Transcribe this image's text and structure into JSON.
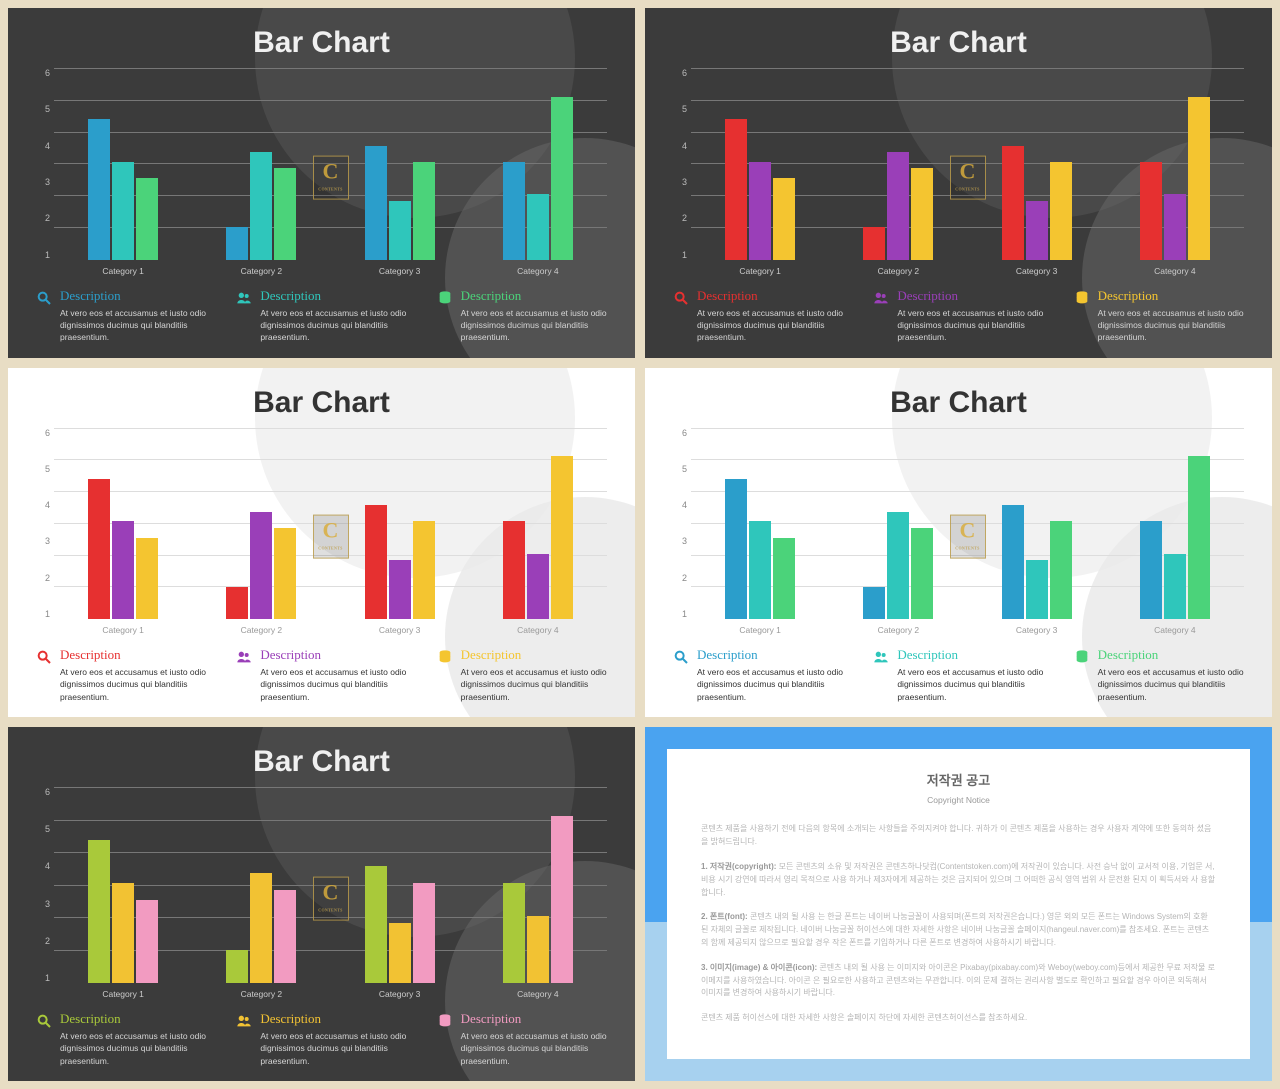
{
  "shared": {
    "title": "Bar Chart",
    "categories": [
      "Category 1",
      "Category 2",
      "Category 3",
      "Category 4"
    ],
    "y_ticks": [
      "1",
      "2",
      "3",
      "4",
      "5",
      "6"
    ],
    "y_max": 6,
    "series_values": [
      [
        4.3,
        3.0,
        2.5
      ],
      [
        1.0,
        3.3,
        2.8
      ],
      [
        3.5,
        1.8,
        3.0
      ],
      [
        3.0,
        2.0,
        5.0
      ]
    ],
    "desc_title": "Description",
    "desc_body": "At vero eos et accusamus et iusto odio dignissimos ducimus qui blanditiis praesentium.",
    "watermark": "C"
  },
  "slides": [
    {
      "theme": "dark",
      "colors": [
        "#2b9ecb",
        "#2fc6bb",
        "#4bd37a"
      ]
    },
    {
      "theme": "dark",
      "colors": [
        "#e63030",
        "#9a3fb8",
        "#f4c530"
      ]
    },
    {
      "theme": "light",
      "colors": [
        "#e63030",
        "#9a3fb8",
        "#f4c530"
      ]
    },
    {
      "theme": "light",
      "colors": [
        "#2b9ecb",
        "#2fc6bb",
        "#4bd37a"
      ]
    },
    {
      "theme": "dark",
      "colors": [
        "#a9c93a",
        "#f2c233",
        "#f29bc1"
      ]
    }
  ],
  "icons": [
    "search",
    "users",
    "db"
  ],
  "copyright": {
    "title_ko": "저작권 공고",
    "title_en": "Copyright Notice",
    "p0": "콘텐츠 제품을 사용하기 전에 다음의 항목에 소개되는 사항들을 주의지켜야 합니다. 귀하가 이 콘텐츠 제품을 사용하는 경우 사용자 계약에 또한 동의하 셨음 을 밝혀드립니다.",
    "p1_label": "1. 저작권(copyright):",
    "p1": "모든 콘텐츠의 소유 및 저작권은 콘텐츠하나닷컴(Contentstoken.com)에 저작권이 있습니다. 사전 승낙 없이 교서적 이용, 기업문 서, 비용 시기 강연에 따라서 영리 목적으로 사용 하거나 제3자에게 제공하는 것은 금지되어 있으며 그 어떠한 공식 영역 범위 사 문전환 된지 이 획득서와 사 용할 합니다.",
    "p2_label": "2. 폰트(font):",
    "p2": "콘텐츠 내의 될 사용 는 한글 폰트는 네이버 나눔글꼴이 사용되며(폰트의 저작권은습니다.) 영문 외의 모든 폰트는 Windows System의 호환 된 자체의 글꼴로 제작됩니다. 네이버 나눔글꼴 허이선스에 대한 자세한 사항은 네이버 나눔글꼴 솔페이지(hangeul.naver.com)를 참조세요. 폰트는 콘텐츠의 함께 제공되지 않으므로 필요할 경우 작은 폰트를 기입하거나 다른 폰트로 변경하여 사용하시기 바랍니다.",
    "p3_label": "3. 이미지(image) & 아이콘(icon):",
    "p3": "콘텐츠 내의 될 사용 는 이미지와 아이콘은 Pixabay(pixabay.com)와 Weboy(weboy.com)등에서 제공한 무료 저작물 로 이메지를 사용하였습니다. 아이콘 은 필요로한 사용하고 콘텐츠와는 무관합니다. 이의 문제 결하는 권리사항 별도로 확인하고 필요할 경우 아이콘 외독해서 이미지를 변경하여 사용하시기 바랍니다.",
    "p4": "콘텐츠 제품 허이선스에 대한 자세한 사항은 솔페이지 하단에 자세한 콘텐츠허이선스를 참조하세요."
  }
}
